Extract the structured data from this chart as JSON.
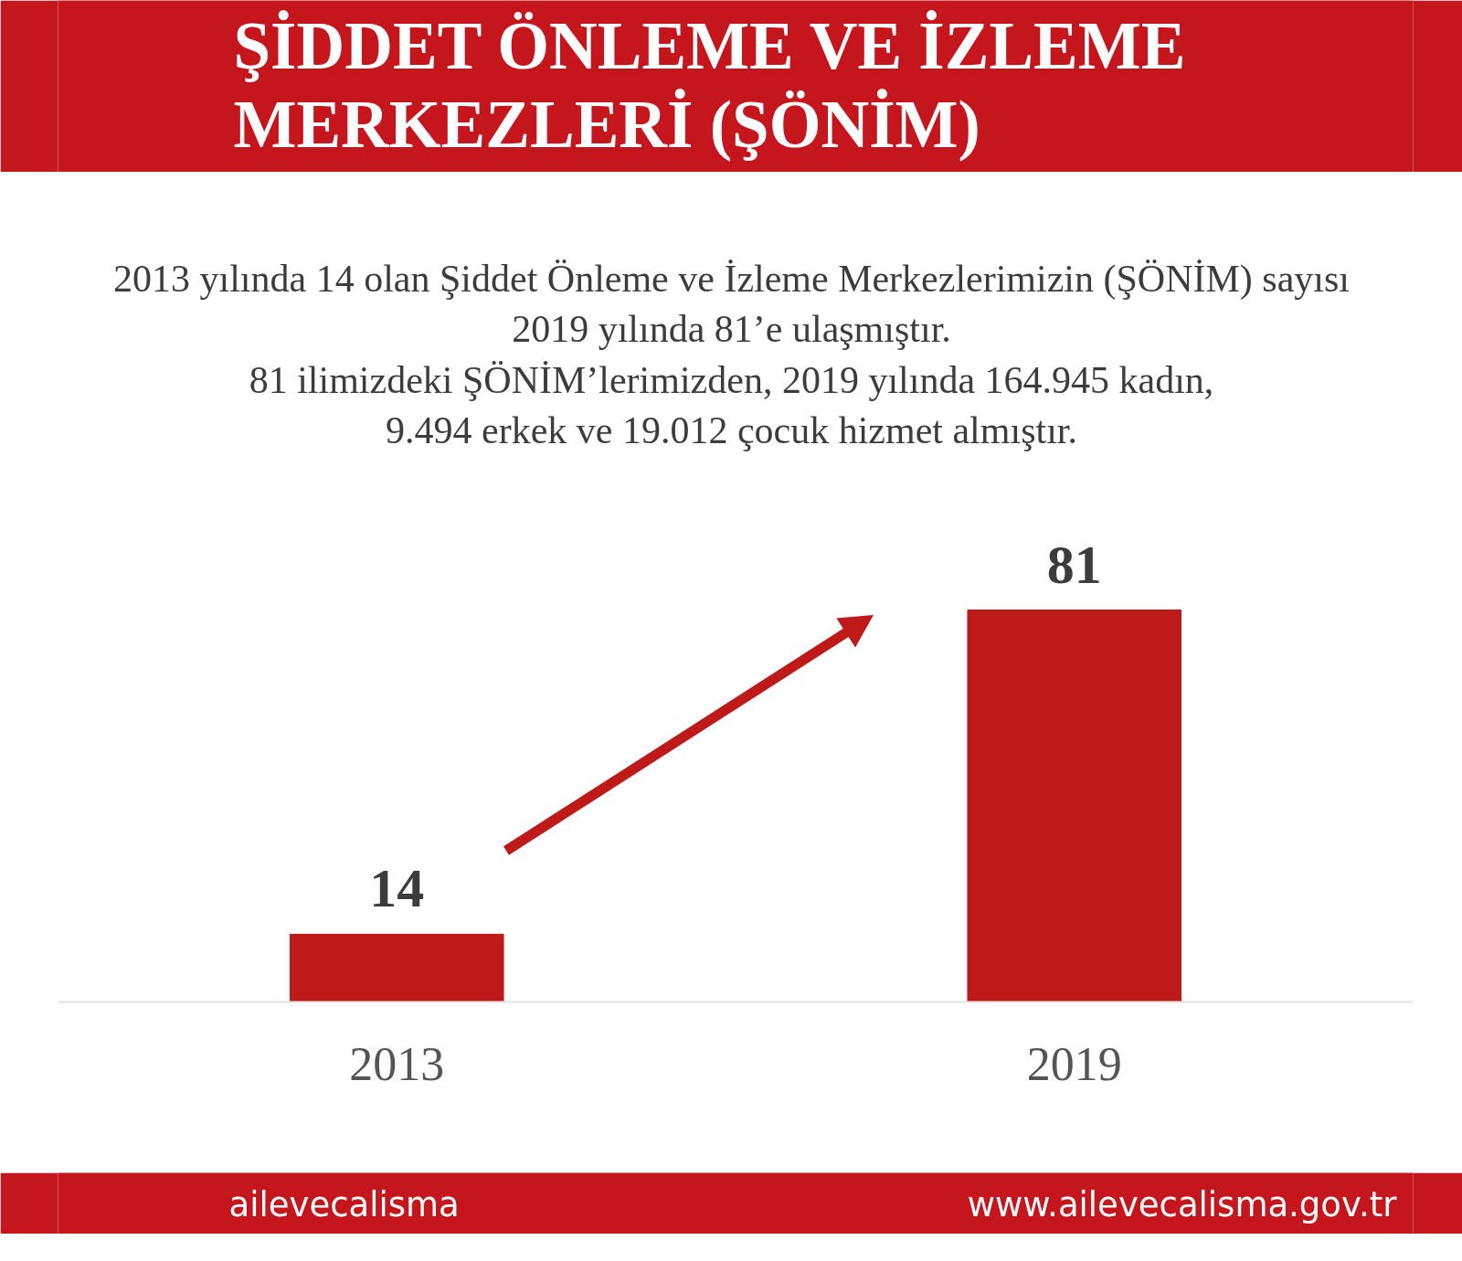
{
  "chart_data": {
    "type": "bar",
    "title": "ŞİDDET ÖNLEME VE İZLEME\nMERKEZLERİ (ŞÖNİM)",
    "subtitle": "2013 yılında 14 olan Şiddet Önleme ve İzleme Merkezlerimizin (ŞÖNİM) sayısı\n2019 yılında 81’e ulaşmıştır.\n81 ilimizdeki ŞÖNİM’lerimizden, 2019 yılında 164.945 kadın,\n9.494 erkek ve 19.012 çocuk hizmet almıştır.",
    "categories": [
      "2013",
      "2019"
    ],
    "values": [
      14,
      81
    ],
    "color": "#be1a1a",
    "data_labels": true,
    "tick_labels": "x",
    "annotations": [
      "ailevecalisma",
      "www.ailevecalisma.gov.tr"
    ]
  }
}
